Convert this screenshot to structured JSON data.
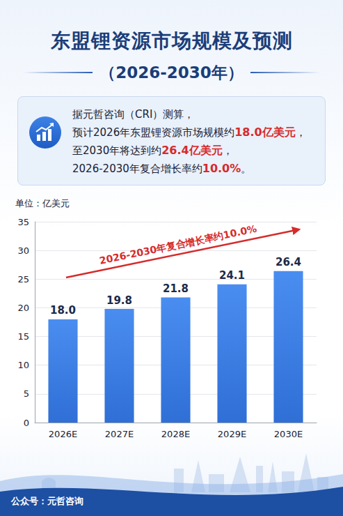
{
  "chart_data": {
    "type": "bar",
    "title": "东盟锂资源市场规模及预测",
    "subtitle": "（2026-2030年）",
    "y_label": "单位：亿美元",
    "categories": [
      "2026E",
      "2027E",
      "2028E",
      "2029E",
      "2030E"
    ],
    "values": [
      18.0,
      19.8,
      21.8,
      24.1,
      26.4
    ],
    "value_labels": [
      "18.0",
      "19.8",
      "21.8",
      "24.1",
      "26.4"
    ],
    "color": "#2f6fd6",
    "ylim": [
      0,
      35
    ],
    "yticks": [
      0,
      5,
      10,
      15,
      20,
      25,
      30,
      35
    ],
    "grid": true,
    "data_labels": true,
    "annotations": [
      "2026-2030年复合增长率约10.0%"
    ]
  },
  "info_box": {
    "lines": [
      [
        {
          "text": "据元哲咨询（CRI）测算，"
        }
      ],
      [
        {
          "text": "预计2026年东盟锂资源市场规模约"
        },
        {
          "text": "18.0亿美元",
          "emphasis": true
        },
        {
          "text": "，"
        }
      ],
      [
        {
          "text": "至2030年将达到约"
        },
        {
          "text": "26.4亿美元",
          "emphasis": true
        },
        {
          "text": "，"
        }
      ],
      [
        {
          "text": "2026-2030年复合增长率约"
        },
        {
          "text": "10.0%",
          "emphasis": true
        },
        {
          "text": "。"
        }
      ]
    ]
  },
  "footer": "公众号：元哲咨询"
}
